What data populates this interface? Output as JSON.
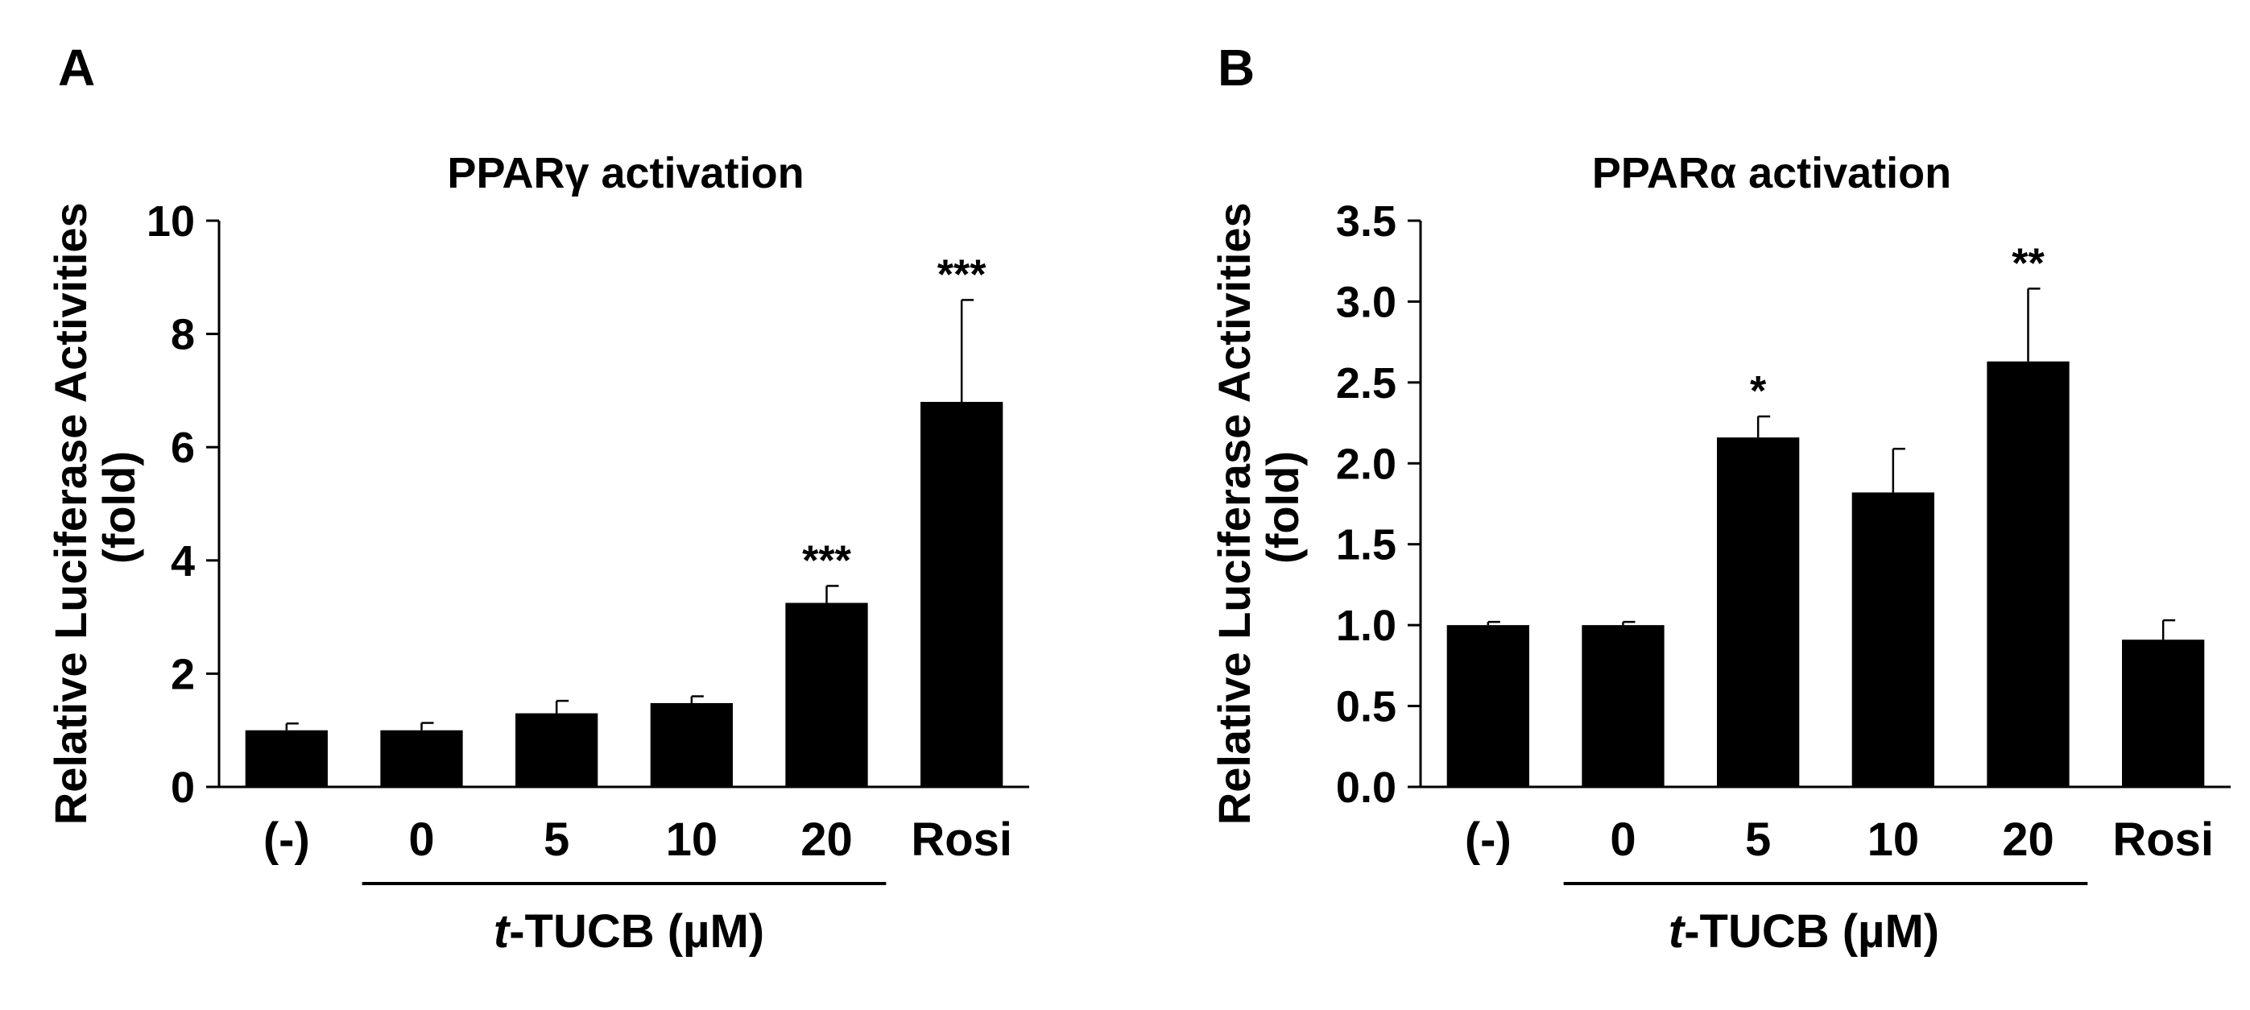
{
  "colors": {
    "bar": "#000000",
    "axis": "#000000",
    "background": "#ffffff"
  },
  "chart_data": [
    {
      "type": "bar",
      "panel": "A",
      "title": "PPARγ activation",
      "ylabel_line1": "Relative Luciferase Activities",
      "ylabel_line2": "(fold)",
      "xlabel_prefix": "t",
      "xlabel_rest": "-TUCB (µM)",
      "categories": [
        "(-)",
        "0",
        "5",
        "10",
        "20",
        "Rosi"
      ],
      "values": [
        1.0,
        1.0,
        1.3,
        1.48,
        3.25,
        6.8
      ],
      "errors": [
        0.12,
        0.13,
        0.22,
        0.12,
        0.3,
        1.8
      ],
      "significance": [
        "",
        "",
        "",
        "",
        "***",
        "***"
      ],
      "ylim": [
        0,
        10
      ],
      "yticks": [
        0,
        2,
        4,
        6,
        8,
        10
      ],
      "ytick_labels": [
        "0",
        "2",
        "4",
        "6",
        "8",
        "10"
      ],
      "bracket_categories": [
        "0",
        "20"
      ]
    },
    {
      "type": "bar",
      "panel": "B",
      "title": "PPARα activation",
      "ylabel_line1": "Relative Luciferase Activities",
      "ylabel_line2": "(fold)",
      "xlabel_prefix": "t",
      "xlabel_rest": "-TUCB (µM)",
      "categories": [
        "(-)",
        "0",
        "5",
        "10",
        "20",
        "Rosi"
      ],
      "values": [
        1.0,
        1.0,
        2.16,
        1.82,
        2.63,
        0.91
      ],
      "errors": [
        0.02,
        0.02,
        0.13,
        0.27,
        0.45,
        0.12
      ],
      "significance": [
        "",
        "",
        "*",
        "",
        "**",
        ""
      ],
      "ylim": [
        0,
        3.5
      ],
      "yticks": [
        0,
        0.5,
        1.0,
        1.5,
        2.0,
        2.5,
        3.0,
        3.5
      ],
      "ytick_labels": [
        "0.0",
        "0.5",
        "1.0",
        "1.5",
        "2.0",
        "2.5",
        "3.0",
        "3.5"
      ],
      "bracket_categories": [
        "0",
        "20"
      ]
    }
  ]
}
